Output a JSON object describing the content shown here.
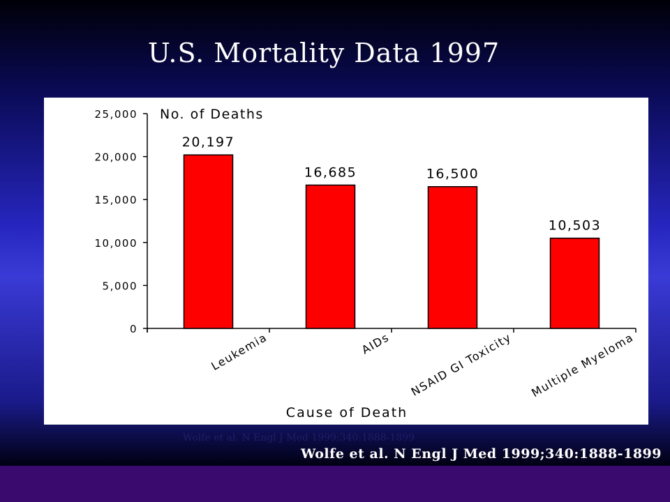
{
  "slide": {
    "title": "U.S. Mortality Data 1997",
    "citation": "Wolfe et al. N Engl J Med 1999;340:1888-1899",
    "citation_ghost": "Wolfe et al. N Engl J Med 1999;340:1888-1899"
  },
  "colors": {
    "bar": "#ff0000",
    "background": "#2626bf",
    "footer": "#3a0a6e"
  },
  "chart_data": {
    "type": "bar",
    "categories": [
      "Leukemia",
      "AIDs",
      "NSAID GI Toxicity",
      "Multiple Myeloma"
    ],
    "values": [
      20197,
      16685,
      16500,
      10503
    ],
    "value_labels": [
      "20,197",
      "16,685",
      "16,500",
      "10,503"
    ],
    "ylabel": "No. of Deaths",
    "xlabel": "Cause of Death",
    "ylim": [
      0,
      25000
    ],
    "yticks": [
      0,
      5000,
      10000,
      15000,
      20000,
      25000
    ],
    "ytick_labels": [
      "0",
      "5,000",
      "10,000",
      "15,000",
      "20,000",
      "25,000"
    ],
    "grid": false,
    "legend": "none"
  }
}
